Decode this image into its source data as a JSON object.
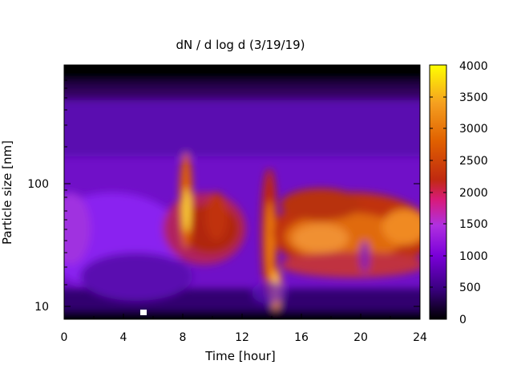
{
  "chart_data": {
    "type": "heatmap",
    "title": "dN / d log d (3/19/19)",
    "xlabel": "Time [hour]",
    "ylabel": "Particle size [nm]",
    "x_range": [
      0,
      24
    ],
    "x_ticks": [
      "0",
      "4",
      "8",
      "12",
      "16",
      "20",
      "24"
    ],
    "y_scale": "log",
    "y_range_nm": [
      8.5,
      200
    ],
    "y_ticks": [
      "10",
      "100"
    ],
    "colorbar": {
      "range": [
        0,
        4000
      ],
      "ticks": [
        "0",
        "500",
        "1000",
        "1500",
        "2000",
        "2500",
        "3000",
        "3500",
        "4000"
      ],
      "colormap": [
        "#000000",
        "#7a00d9",
        "#9b30ff",
        "#e0208a",
        "#c02a0a",
        "#e06000",
        "#f59a1a",
        "#ffff00"
      ]
    },
    "features": [
      {
        "time_hr": 0.0,
        "peak_size_nm": 45,
        "approx_value": 1000
      },
      {
        "time_hr": 4.0,
        "peak_size_nm": 40,
        "approx_value": 900
      },
      {
        "time_hr": 7.0,
        "peak_size_nm": 40,
        "approx_value": 1500
      },
      {
        "time_hr": 8.2,
        "peak_size_nm": 55,
        "approx_value": 3700
      },
      {
        "time_hr": 10.0,
        "peak_size_nm": 50,
        "approx_value": 2400
      },
      {
        "time_hr": 13.8,
        "peak_size_nm": 45,
        "approx_value": 2600
      },
      {
        "time_hr": 14.3,
        "peak_size_nm": 11,
        "approx_value": 3300
      },
      {
        "time_hr": 17.0,
        "peak_size_nm": 40,
        "approx_value": 3000
      },
      {
        "time_hr": 20.0,
        "peak_size_nm": 38,
        "approx_value": 2600
      },
      {
        "time_hr": 24.0,
        "peak_size_nm": 48,
        "approx_value": 2900
      }
    ],
    "grid": false
  }
}
